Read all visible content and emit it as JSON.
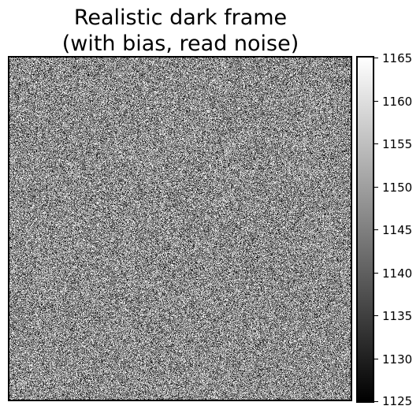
{
  "chart_data": {
    "type": "heatmap",
    "title_lines": [
      "Realistic dark frame",
      "(with bias, read noise)"
    ],
    "xlabel": "",
    "ylabel": "",
    "x_ticks_visible": false,
    "y_ticks_visible": false,
    "colormap": "gray",
    "colorbar": {
      "vmin": 1125,
      "vmax": 1165,
      "ticks": [
        1125,
        1130,
        1135,
        1140,
        1145,
        1150,
        1155,
        1160,
        1165
      ],
      "position": "right"
    },
    "noise_mean": 1147,
    "noise_std": 9
  }
}
